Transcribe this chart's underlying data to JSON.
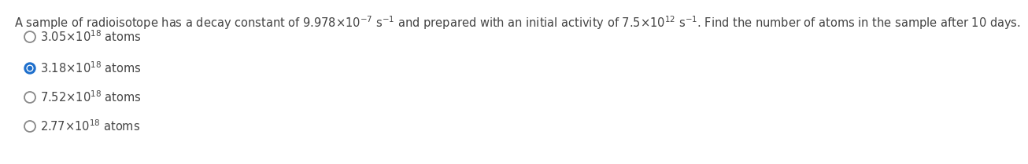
{
  "question": "A sample of radioisotope has a decay constant of 9.978×10$^{-7}$ s$^{-1}$ and prepared with an initial activity of 7.5×10$^{12}$ s$^{-1}$. Find the number of atoms in the sample after 10 days.",
  "options": [
    {
      "text": "3.05×10$^{18}$ atoms",
      "selected": false
    },
    {
      "text": "3.18×10$^{18}$ atoms",
      "selected": true
    },
    {
      "text": "7.52×10$^{18}$ atoms",
      "selected": false
    },
    {
      "text": "2.77×10$^{18}$ atoms",
      "selected": false
    }
  ],
  "selected_color": "#1e6fcc",
  "unselected_color": "#888888",
  "text_color": "#444444",
  "selected_text_color": "#444444",
  "background_color": "#ffffff",
  "font_size": 10.5,
  "question_font_size": 10.5
}
